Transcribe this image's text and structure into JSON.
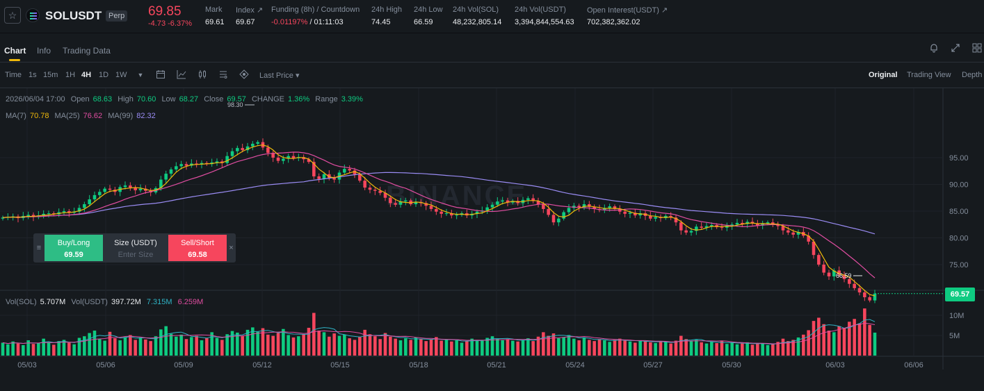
{
  "ticker": {
    "symbol": "SOLUSDT",
    "badge": "Perp",
    "last_price": "69.85",
    "change": "-4.73 -6.37%",
    "stats": [
      {
        "label": "Mark",
        "value": "69.61"
      },
      {
        "label": "Index ↗",
        "value": "69.67"
      },
      {
        "label": "Funding (8h) / Countdown",
        "value": "-0.01197%",
        "value2": " / 01:11:03"
      },
      {
        "label": "24h High",
        "value": "74.45"
      },
      {
        "label": "24h Low",
        "value": "66.59"
      },
      {
        "label": "24h Vol(SOL)",
        "value": "48,232,805.14"
      },
      {
        "label": "24h Vol(USDT)",
        "value": "3,394,844,554.63"
      },
      {
        "label": "Open Interest(USDT) ↗",
        "value": "702,382,362.02"
      }
    ]
  },
  "tabs": [
    "Chart",
    "Info",
    "Trading Data"
  ],
  "toolbar": {
    "timeframes": [
      "Time",
      "1s",
      "15m",
      "1H",
      "4H",
      "1D",
      "1W"
    ],
    "active": "4H",
    "price_type": "Last Price ▾",
    "views": [
      "Original",
      "Trading View",
      "Depth"
    ]
  },
  "ohlc": {
    "date": "2026/06/04 17:00",
    "open_label": "Open",
    "open": "68.63",
    "high_label": "High",
    "high": "70.60",
    "low_label": "Low",
    "low": "68.27",
    "close_label": "Close",
    "close": "69.57",
    "change_label": "CHANGE",
    "change": "1.36%",
    "range_label": "Range",
    "range": "3.39%"
  },
  "ma": {
    "ma7_label": "MA(7)",
    "ma7": "70.78",
    "ma25_label": "MA(25)",
    "ma25": "76.62",
    "ma99_label": "MA(99)",
    "ma99": "82.32"
  },
  "vol": {
    "sol_label": "Vol(SOL)",
    "sol": "5.707M",
    "usdt_label": "Vol(USDT)",
    "usdt": "397.72M",
    "ma1": "7.315M",
    "ma2": "6.259M"
  },
  "order": {
    "buy_label": "Buy/Long",
    "buy_price": "69.59",
    "size_label": "Size (USDT)",
    "size_placeholder": "Enter Size",
    "sell_label": "Sell/Short",
    "sell_price": "69.58"
  },
  "current_price": "69.57",
  "watermark": "BINANCE",
  "colors": {
    "up": "#0ecb81",
    "down": "#f6465d",
    "ma7": "#f0b90b",
    "ma25": "#e04da1",
    "ma99": "#9a8cf4"
  },
  "chart_data": {
    "type": "candlestick",
    "price_ticks": [
      "95.00",
      "90.00",
      "85.00",
      "80.00",
      "75.00"
    ],
    "price_tick_values": [
      95,
      90,
      85,
      80,
      75
    ],
    "vol_ticks": [
      "10M",
      "5M"
    ],
    "vol_tick_values": [
      10,
      5
    ],
    "x_ticks": [
      "05/03",
      "05/06",
      "05/09",
      "05/12",
      "05/15",
      "05/18",
      "05/21",
      "05/24",
      "05/27",
      "05/30",
      "06/03",
      "06/06"
    ],
    "high_marker": "98.30",
    "low_marker": "66.59",
    "close_series": [
      83.8,
      83.9,
      84.0,
      83.7,
      84.1,
      84.3,
      83.9,
      84.2,
      84.5,
      84.6,
      84.4,
      84.8,
      85.0,
      84.7,
      84.9,
      85.6,
      86.3,
      87.2,
      88.0,
      88.6,
      89.2,
      89.0,
      88.6,
      89.5,
      89.8,
      89.4,
      88.9,
      89.2,
      88.8,
      88.5,
      89.3,
      90.9,
      92.0,
      92.8,
      93.4,
      93.8,
      93.5,
      93.9,
      93.7,
      94.0,
      93.8,
      94.1,
      94.3,
      94.0,
      95.3,
      96.2,
      96.8,
      96.4,
      97.1,
      97.6,
      97.9,
      96.9,
      95.9,
      95.0,
      94.4,
      94.8,
      95.3,
      94.9,
      95.1,
      94.7,
      94.2,
      91.5,
      91.0,
      91.9,
      91.2,
      90.9,
      92.2,
      92.9,
      92.6,
      91.9,
      90.7,
      89.4,
      89.0,
      88.8,
      88.4,
      87.5,
      86.5,
      86.2,
      86.8,
      87.0,
      86.3,
      86.7,
      86.5,
      86.0,
      85.4,
      84.9,
      84.5,
      84.6,
      84.2,
      84.3,
      84.6,
      84.2,
      84.5,
      84.9,
      85.1,
      85.7,
      86.2,
      86.8,
      87.0,
      86.6,
      86.9,
      86.5,
      87.1,
      87.4,
      86.9,
      86.3,
      85.4,
      84.3,
      82.9,
      83.6,
      84.8,
      85.6,
      86.0,
      85.7,
      86.3,
      85.8,
      85.4,
      85.2,
      85.6,
      85.9,
      85.4,
      84.9,
      84.5,
      84.7,
      84.2,
      84.6,
      84.1,
      83.6,
      83.9,
      83.7,
      84.1,
      83.8,
      82.9,
      81.4,
      81.0,
      81.3,
      82.1,
      81.9,
      82.2,
      82.4,
      82.0,
      81.9,
      82.3,
      82.5,
      82.8,
      82.6,
      83.0,
      82.7,
      82.3,
      82.7,
      82.9,
      82.5,
      82.2,
      81.4,
      81.0,
      80.6,
      81.1,
      80.4,
      79.3,
      76.8,
      75.0,
      73.5,
      72.8,
      73.9,
      73.1,
      72.3,
      71.4,
      70.6,
      69.8,
      68.9,
      68.3,
      69.57
    ],
    "volume_series": [
      3.2,
      2.8,
      3.5,
      3.0,
      2.6,
      3.8,
      2.9,
      3.1,
      4.2,
      3.3,
      2.7,
      3.6,
      3.9,
      3.2,
      2.8,
      4.4,
      4.8,
      5.6,
      6.2,
      4.1,
      3.7,
      5.9,
      4.3,
      3.8,
      4.6,
      5.1,
      3.9,
      4.5,
      4.0,
      3.6,
      4.8,
      6.5,
      7.3,
      5.4,
      4.7,
      5.2,
      4.1,
      4.6,
      4.9,
      3.8,
      4.3,
      5.8,
      4.4,
      3.9,
      5.3,
      6.1,
      5.7,
      4.8,
      6.4,
      7.0,
      5.9,
      6.8,
      5.2,
      4.9,
      5.6,
      6.6,
      5.1,
      4.5,
      4.8,
      5.3,
      6.9,
      10.6,
      6.2,
      5.8,
      4.7,
      5.5,
      4.9,
      5.2,
      4.3,
      3.9,
      4.7,
      6.4,
      5.3,
      4.8,
      4.1,
      5.6,
      4.7,
      4.2,
      3.8,
      4.3,
      3.9,
      4.5,
      4.1,
      3.6,
      4.0,
      4.6,
      3.7,
      3.9,
      3.5,
      3.8,
      3.2,
      3.6,
      4.2,
      3.7,
      3.9,
      4.4,
      4.8,
      4.2,
      3.8,
      4.1,
      3.7,
      3.5,
      3.9,
      4.3,
      3.6,
      4.7,
      5.8,
      4.9,
      5.5,
      4.3,
      4.6,
      5.1,
      4.2,
      3.8,
      4.5,
      3.9,
      3.6,
      4.1,
      3.8,
      3.4,
      3.9,
      4.2,
      3.7,
      3.5,
      3.2,
      3.8,
      3.6,
      3.3,
      3.1,
      3.5,
      3.4,
      3.0,
      3.7,
      4.9,
      4.1,
      3.6,
      3.9,
      3.3,
      3.0,
      3.4,
      3.1,
      3.6,
      2.9,
      3.2,
      2.8,
      3.0,
      3.3,
      2.7,
      2.9,
      3.1,
      2.6,
      2.8,
      3.4,
      4.2,
      3.6,
      3.9,
      4.5,
      5.2,
      6.3,
      8.6,
      9.4,
      7.8,
      6.2,
      5.8,
      7.3,
      6.9,
      8.4,
      9.1,
      8.0,
      11.7,
      7.6,
      5.7
    ]
  }
}
